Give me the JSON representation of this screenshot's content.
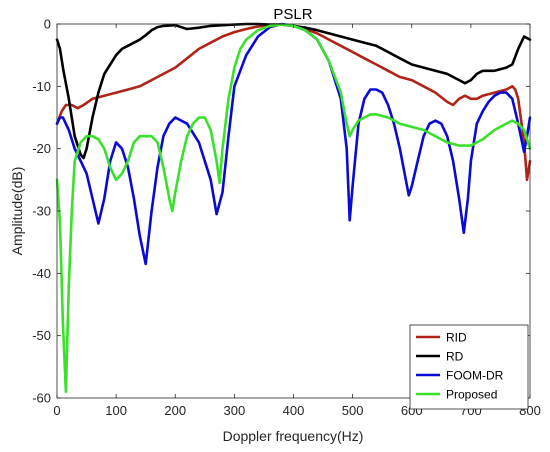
{
  "chart_data": {
    "type": "line",
    "title": "PSLR",
    "xlabel": "Doppler frequency(Hz)",
    "ylabel": "Amplitude(dB)",
    "xlim": [
      0,
      800
    ],
    "ylim": [
      -60,
      0
    ],
    "xticks": [
      0,
      100,
      200,
      300,
      400,
      500,
      600,
      700,
      800
    ],
    "yticks": [
      0,
      -10,
      -20,
      -30,
      -40,
      -50,
      -60
    ],
    "grid": false,
    "legend": {
      "position": "bottom-right",
      "entries": [
        "RID",
        "RD",
        "FOOM-DR",
        "Proposed"
      ]
    },
    "series": [
      {
        "name": "RID",
        "color": "#b02418",
        "points": [
          [
            0,
            -16
          ],
          [
            8,
            -14
          ],
          [
            15,
            -13
          ],
          [
            25,
            -13
          ],
          [
            35,
            -13.5
          ],
          [
            45,
            -13
          ],
          [
            60,
            -12
          ],
          [
            80,
            -11.5
          ],
          [
            100,
            -11
          ],
          [
            120,
            -10.5
          ],
          [
            140,
            -10
          ],
          [
            160,
            -9
          ],
          [
            180,
            -8
          ],
          [
            200,
            -7
          ],
          [
            220,
            -5.5
          ],
          [
            240,
            -4
          ],
          [
            260,
            -3
          ],
          [
            280,
            -2
          ],
          [
            300,
            -1.3
          ],
          [
            320,
            -0.8
          ],
          [
            340,
            -0.4
          ],
          [
            360,
            -0.2
          ],
          [
            380,
            -0.1
          ],
          [
            400,
            -0.3
          ],
          [
            420,
            -0.8
          ],
          [
            440,
            -1.5
          ],
          [
            460,
            -2.5
          ],
          [
            480,
            -3.5
          ],
          [
            500,
            -4.5
          ],
          [
            520,
            -5.5
          ],
          [
            540,
            -6.5
          ],
          [
            560,
            -7.5
          ],
          [
            580,
            -8.5
          ],
          [
            600,
            -9
          ],
          [
            620,
            -10
          ],
          [
            640,
            -11
          ],
          [
            660,
            -12.5
          ],
          [
            670,
            -13
          ],
          [
            680,
            -12
          ],
          [
            690,
            -11.5
          ],
          [
            700,
            -12
          ],
          [
            710,
            -12
          ],
          [
            720,
            -11.5
          ],
          [
            740,
            -11
          ],
          [
            760,
            -10.5
          ],
          [
            770,
            -10
          ],
          [
            775,
            -10.5
          ],
          [
            780,
            -12
          ],
          [
            790,
            -19
          ],
          [
            795,
            -25
          ],
          [
            800,
            -22
          ]
        ]
      },
      {
        "name": "RD",
        "color": "#000000",
        "points": [
          [
            0,
            -2.5
          ],
          [
            5,
            -4
          ],
          [
            10,
            -7
          ],
          [
            20,
            -12
          ],
          [
            30,
            -18
          ],
          [
            40,
            -21
          ],
          [
            45,
            -21.5
          ],
          [
            50,
            -20
          ],
          [
            60,
            -15
          ],
          [
            70,
            -11
          ],
          [
            80,
            -8
          ],
          [
            90,
            -6.5
          ],
          [
            100,
            -5
          ],
          [
            110,
            -4
          ],
          [
            120,
            -3.5
          ],
          [
            130,
            -3
          ],
          [
            140,
            -2.5
          ],
          [
            150,
            -1.8
          ],
          [
            160,
            -1
          ],
          [
            170,
            -0.5
          ],
          [
            180,
            -0.3
          ],
          [
            200,
            -0.2
          ],
          [
            220,
            -0.8
          ],
          [
            240,
            -0.6
          ],
          [
            260,
            -0.3
          ],
          [
            280,
            -0.2
          ],
          [
            300,
            -0.1
          ],
          [
            320,
            0
          ],
          [
            340,
            0
          ],
          [
            360,
            -0.1
          ],
          [
            380,
            -0.1
          ],
          [
            400,
            -0.3
          ],
          [
            420,
            -0.6
          ],
          [
            440,
            -1
          ],
          [
            460,
            -1.5
          ],
          [
            480,
            -2
          ],
          [
            500,
            -2.5
          ],
          [
            520,
            -3
          ],
          [
            540,
            -3.5
          ],
          [
            560,
            -4.5
          ],
          [
            580,
            -5.5
          ],
          [
            600,
            -6.5
          ],
          [
            620,
            -7
          ],
          [
            640,
            -7.5
          ],
          [
            660,
            -8
          ],
          [
            680,
            -9
          ],
          [
            690,
            -9.5
          ],
          [
            700,
            -9
          ],
          [
            710,
            -8
          ],
          [
            720,
            -7.5
          ],
          [
            740,
            -7.5
          ],
          [
            760,
            -7
          ],
          [
            770,
            -6.5
          ],
          [
            780,
            -4
          ],
          [
            790,
            -2
          ],
          [
            800,
            -2.5
          ]
        ]
      },
      {
        "name": "FOOM-DR",
        "color": "#0a0ad4",
        "points": [
          [
            0,
            -16
          ],
          [
            5,
            -15
          ],
          [
            10,
            -15
          ],
          [
            20,
            -17
          ],
          [
            30,
            -20
          ],
          [
            40,
            -22
          ],
          [
            50,
            -24
          ],
          [
            60,
            -28
          ],
          [
            70,
            -32
          ],
          [
            80,
            -28
          ],
          [
            90,
            -22
          ],
          [
            100,
            -19
          ],
          [
            110,
            -20
          ],
          [
            120,
            -23
          ],
          [
            130,
            -28
          ],
          [
            140,
            -34
          ],
          [
            150,
            -38.5
          ],
          [
            160,
            -30
          ],
          [
            170,
            -23
          ],
          [
            180,
            -18
          ],
          [
            190,
            -16
          ],
          [
            200,
            -15
          ],
          [
            220,
            -16
          ],
          [
            240,
            -19
          ],
          [
            260,
            -25
          ],
          [
            270,
            -30.5
          ],
          [
            280,
            -27
          ],
          [
            290,
            -18
          ],
          [
            300,
            -10
          ],
          [
            320,
            -5
          ],
          [
            340,
            -2
          ],
          [
            360,
            -0.5
          ],
          [
            380,
            0
          ],
          [
            400,
            -0.3
          ],
          [
            420,
            -1
          ],
          [
            440,
            -2.5
          ],
          [
            460,
            -6
          ],
          [
            480,
            -12
          ],
          [
            490,
            -20
          ],
          [
            495,
            -31.5
          ],
          [
            500,
            -26
          ],
          [
            510,
            -16
          ],
          [
            520,
            -12
          ],
          [
            530,
            -10.5
          ],
          [
            540,
            -10.5
          ],
          [
            550,
            -11
          ],
          [
            560,
            -13
          ],
          [
            570,
            -16
          ],
          [
            580,
            -20
          ],
          [
            590,
            -25
          ],
          [
            595,
            -27.5
          ],
          [
            600,
            -26
          ],
          [
            610,
            -22
          ],
          [
            620,
            -18
          ],
          [
            630,
            -16
          ],
          [
            640,
            -15.5
          ],
          [
            650,
            -16
          ],
          [
            660,
            -18
          ],
          [
            670,
            -22
          ],
          [
            680,
            -28
          ],
          [
            688,
            -33.5
          ],
          [
            695,
            -28
          ],
          [
            700,
            -22
          ],
          [
            710,
            -16
          ],
          [
            720,
            -14
          ],
          [
            730,
            -12.5
          ],
          [
            740,
            -11.5
          ],
          [
            750,
            -11
          ],
          [
            760,
            -11
          ],
          [
            770,
            -12
          ],
          [
            780,
            -16
          ],
          [
            790,
            -20.5
          ],
          [
            795,
            -18
          ],
          [
            800,
            -15
          ]
        ]
      },
      {
        "name": "Proposed",
        "color": "#3ae02a",
        "points": [
          [
            0,
            -25
          ],
          [
            5,
            -32
          ],
          [
            10,
            -48
          ],
          [
            15,
            -59
          ],
          [
            20,
            -42
          ],
          [
            25,
            -30
          ],
          [
            30,
            -22
          ],
          [
            40,
            -19
          ],
          [
            50,
            -18
          ],
          [
            60,
            -18
          ],
          [
            70,
            -18.5
          ],
          [
            80,
            -20
          ],
          [
            90,
            -23
          ],
          [
            100,
            -25
          ],
          [
            110,
            -24
          ],
          [
            120,
            -22
          ],
          [
            130,
            -19
          ],
          [
            140,
            -18
          ],
          [
            150,
            -18
          ],
          [
            160,
            -18
          ],
          [
            170,
            -19
          ],
          [
            180,
            -23
          ],
          [
            190,
            -28
          ],
          [
            195,
            -30
          ],
          [
            200,
            -27
          ],
          [
            210,
            -22
          ],
          [
            220,
            -18
          ],
          [
            230,
            -16
          ],
          [
            240,
            -15
          ],
          [
            250,
            -15
          ],
          [
            260,
            -17
          ],
          [
            270,
            -22
          ],
          [
            275,
            -25.5
          ],
          [
            280,
            -20
          ],
          [
            290,
            -12
          ],
          [
            300,
            -7
          ],
          [
            310,
            -4
          ],
          [
            320,
            -2.5
          ],
          [
            340,
            -1
          ],
          [
            360,
            -0.3
          ],
          [
            380,
            -0.1
          ],
          [
            400,
            -0.3
          ],
          [
            420,
            -1
          ],
          [
            440,
            -2.5
          ],
          [
            460,
            -6
          ],
          [
            480,
            -11
          ],
          [
            490,
            -16
          ],
          [
            495,
            -18
          ],
          [
            500,
            -17
          ],
          [
            510,
            -15.5
          ],
          [
            520,
            -15
          ],
          [
            530,
            -14.5
          ],
          [
            540,
            -14.5
          ],
          [
            560,
            -15
          ],
          [
            580,
            -16
          ],
          [
            600,
            -16.5
          ],
          [
            620,
            -17
          ],
          [
            640,
            -18
          ],
          [
            660,
            -19
          ],
          [
            680,
            -19.5
          ],
          [
            700,
            -19.5
          ],
          [
            720,
            -18.5
          ],
          [
            740,
            -17
          ],
          [
            760,
            -16
          ],
          [
            770,
            -15.5
          ],
          [
            780,
            -16
          ],
          [
            790,
            -17
          ],
          [
            800,
            -20
          ]
        ]
      }
    ]
  }
}
